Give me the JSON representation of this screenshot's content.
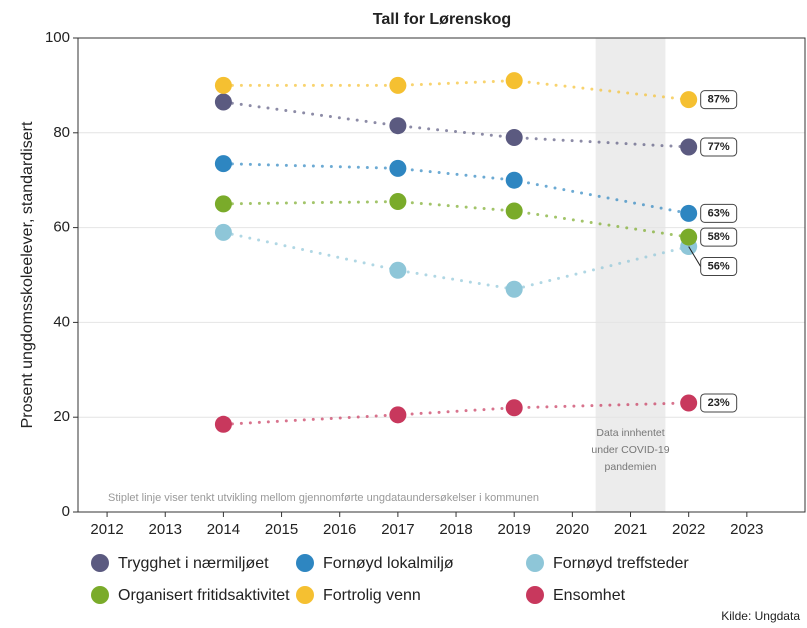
{
  "chart_data": {
    "type": "line",
    "title": "Tall for Lørenskog",
    "y_label": "Prosent ungdomsskoleelever, standardisert",
    "note": "Stiplet linje viser tenkt utvikling mellom gjennomførte ungdataundersøkelser i kommunen",
    "source": "Kilde: Ungdata",
    "shade": {
      "range": [
        2020.4,
        2021.6
      ],
      "label": [
        "Data innhentet",
        "under COVID-19",
        "pandemien"
      ]
    },
    "x": [
      2014,
      2017,
      2019,
      2022
    ],
    "xlim": [
      2011.5,
      2024
    ],
    "xticks": [
      2012,
      2013,
      2014,
      2015,
      2016,
      2017,
      2018,
      2019,
      2020,
      2021,
      2022,
      2023
    ],
    "ylim": [
      0,
      100
    ],
    "yticks": [
      0,
      20,
      40,
      60,
      80,
      100
    ],
    "grid": true,
    "series": [
      {
        "name": "Trygghet i nærmiljøet",
        "color": "#5b5a80",
        "values": [
          86.5,
          81.5,
          79,
          77
        ],
        "value_labels": [
          null,
          null,
          null,
          "77%"
        ]
      },
      {
        "name": "Fornøyd lokalmiljø",
        "color": "#2e86c1",
        "values": [
          73.5,
          72.5,
          70,
          63
        ],
        "value_labels": [
          null,
          null,
          null,
          "63%"
        ]
      },
      {
        "name": "Fornøyd treffsteder",
        "color": "#8ec6d8",
        "values": [
          59,
          51,
          47,
          56
        ],
        "value_labels": [
          null,
          null,
          null,
          "56%"
        ]
      },
      {
        "name": "Organisert fritidsaktivitet",
        "color": "#7aab2a",
        "values": [
          65,
          65.5,
          63.5,
          58
        ],
        "value_labels": [
          null,
          null,
          null,
          "58%"
        ]
      },
      {
        "name": "Fortrolig venn",
        "color": "#f5c031",
        "values": [
          90,
          90,
          91,
          87
        ],
        "value_labels": [
          null,
          null,
          null,
          "87%"
        ]
      },
      {
        "name": "Ensomhet",
        "color": "#c8385d",
        "values": [
          18.5,
          20.5,
          22,
          23
        ],
        "value_labels": [
          null,
          null,
          null,
          "23%"
        ]
      }
    ]
  }
}
